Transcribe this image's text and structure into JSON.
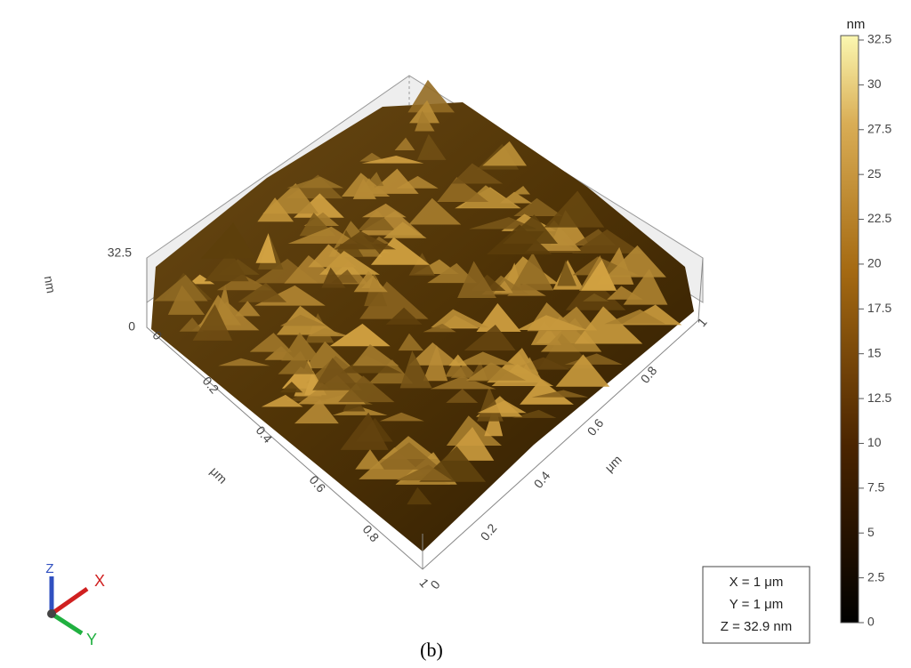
{
  "figure": {
    "caption": "(b)",
    "colorbar": {
      "unit": "nm",
      "ticks": [
        32.5,
        30,
        27.5,
        25,
        22.5,
        20,
        17.5,
        15,
        12.5,
        10,
        7.5,
        5,
        2.5,
        0
      ]
    },
    "z_axis": {
      "unit": "nm",
      "ticks": [
        32.5,
        0
      ]
    },
    "x_axis": {
      "unit": "μm",
      "ticks": [
        0,
        0.2,
        0.4,
        0.6,
        0.8,
        1
      ]
    },
    "y_axis": {
      "unit": "μm",
      "ticks": [
        0,
        0.2,
        0.4,
        0.6,
        0.8,
        1
      ]
    },
    "info_box": [
      "X = 1 μm",
      "Y = 1 μm",
      "Z = 32.9 nm"
    ],
    "orientation": {
      "z": "Z",
      "x": "X",
      "y": "Y"
    }
  }
}
